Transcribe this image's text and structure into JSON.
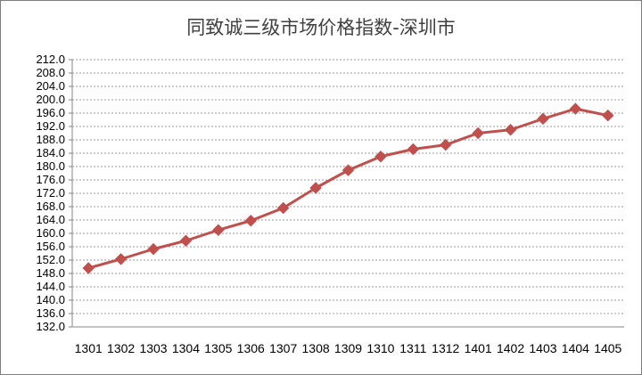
{
  "chart_data": {
    "type": "line",
    "title": "同致诚三级市场价格指数-深圳市",
    "xlabel": "",
    "ylabel": "",
    "categories": [
      "1301",
      "1302",
      "1303",
      "1304",
      "1305",
      "1306",
      "1307",
      "1308",
      "1309",
      "1310",
      "1311",
      "1312",
      "1401",
      "1402",
      "1403",
      "1404",
      "1405"
    ],
    "series": [
      {
        "values": [
          149.6,
          152.3,
          155.3,
          157.8,
          161.0,
          163.8,
          167.6,
          173.6,
          178.9,
          183.0,
          185.2,
          186.5,
          190.0,
          191.0,
          194.3,
          197.3,
          195.3
        ]
      }
    ],
    "ylim": [
      132.0,
      212.0
    ],
    "ytick_step": 4.0,
    "grid": true,
    "legend": "none",
    "colors": {
      "line": "#c0504d",
      "grid": "#9a9a9a",
      "axis": "#868686"
    }
  }
}
